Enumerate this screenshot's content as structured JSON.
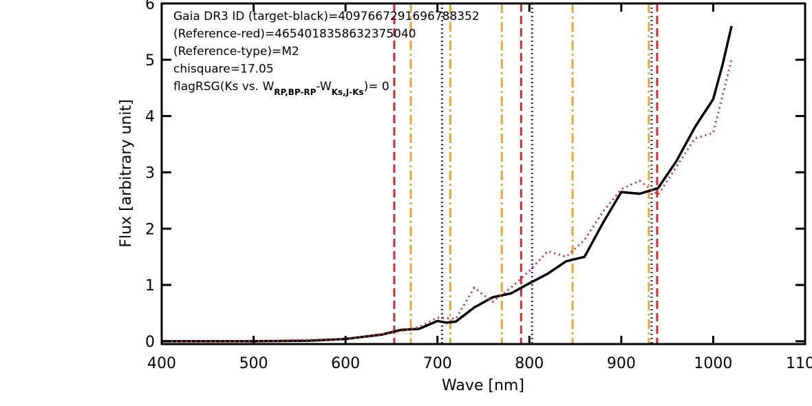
{
  "chart_data": {
    "type": "line",
    "x_label": "Wave [nm]",
    "y_label": "Flux [arbitrary unit]",
    "xlim": [
      400,
      1100
    ],
    "ylim": [
      -0.05,
      6
    ],
    "xticks": [
      400,
      500,
      600,
      700,
      800,
      900,
      1000,
      1100
    ],
    "yticks": [
      0,
      1,
      2,
      3,
      4,
      5,
      6
    ],
    "annotations": [
      "Gaia DR3 ID (target-black)=4097667291696788352",
      "(Reference-red)=4654018358632375040",
      "(Reference-type)=M2",
      "chisquare=17.05",
      [
        {
          "text": "flagRSG(Ks vs. W"
        },
        {
          "text": "RP,BP-RP",
          "sub": true
        },
        {
          "text": "-W"
        },
        {
          "text": "Ks,J-Ks",
          "sub": true
        },
        {
          "text": ")= 0"
        }
      ]
    ],
    "vlines": [
      {
        "color": "#d62728",
        "dash": "12,6",
        "x": [
          653,
          791,
          939
        ]
      },
      {
        "color": "#e8a72c",
        "dash": "14,5,3,5",
        "x": [
          671,
          714,
          770,
          847,
          930
        ]
      },
      {
        "color": "#2b2b8c",
        "dash": "2,4",
        "x": [
          705,
          803,
          933
        ]
      }
    ],
    "series": [
      {
        "color": "#000000",
        "dash": "none",
        "width": 3.5,
        "x": [
          400,
          500,
          560,
          600,
          640,
          660,
          680,
          700,
          710,
          720,
          740,
          760,
          780,
          800,
          820,
          840,
          860,
          880,
          900,
          920,
          940,
          960,
          980,
          1000,
          1010,
          1020
        ],
        "values": [
          0,
          0,
          0.01,
          0.04,
          0.12,
          0.2,
          0.22,
          0.36,
          0.33,
          0.35,
          0.6,
          0.78,
          0.85,
          1.03,
          1.2,
          1.42,
          1.5,
          2.1,
          2.65,
          2.62,
          2.72,
          3.2,
          3.8,
          4.3,
          4.9,
          5.6
        ]
      },
      {
        "color": "#d62728",
        "dash": "2,5",
        "width": 3,
        "x": [
          400,
          500,
          600,
          640,
          660,
          680,
          700,
          720,
          740,
          760,
          780,
          800,
          820,
          840,
          860,
          880,
          900,
          920,
          940,
          960,
          980,
          1000,
          1020
        ],
        "values": [
          0,
          0,
          0.04,
          0.12,
          0.18,
          0.25,
          0.42,
          0.4,
          0.95,
          0.7,
          0.95,
          1.25,
          1.6,
          1.5,
          1.8,
          2.3,
          2.7,
          2.85,
          2.6,
          3.1,
          3.6,
          3.7,
          5.0
        ]
      }
    ]
  }
}
